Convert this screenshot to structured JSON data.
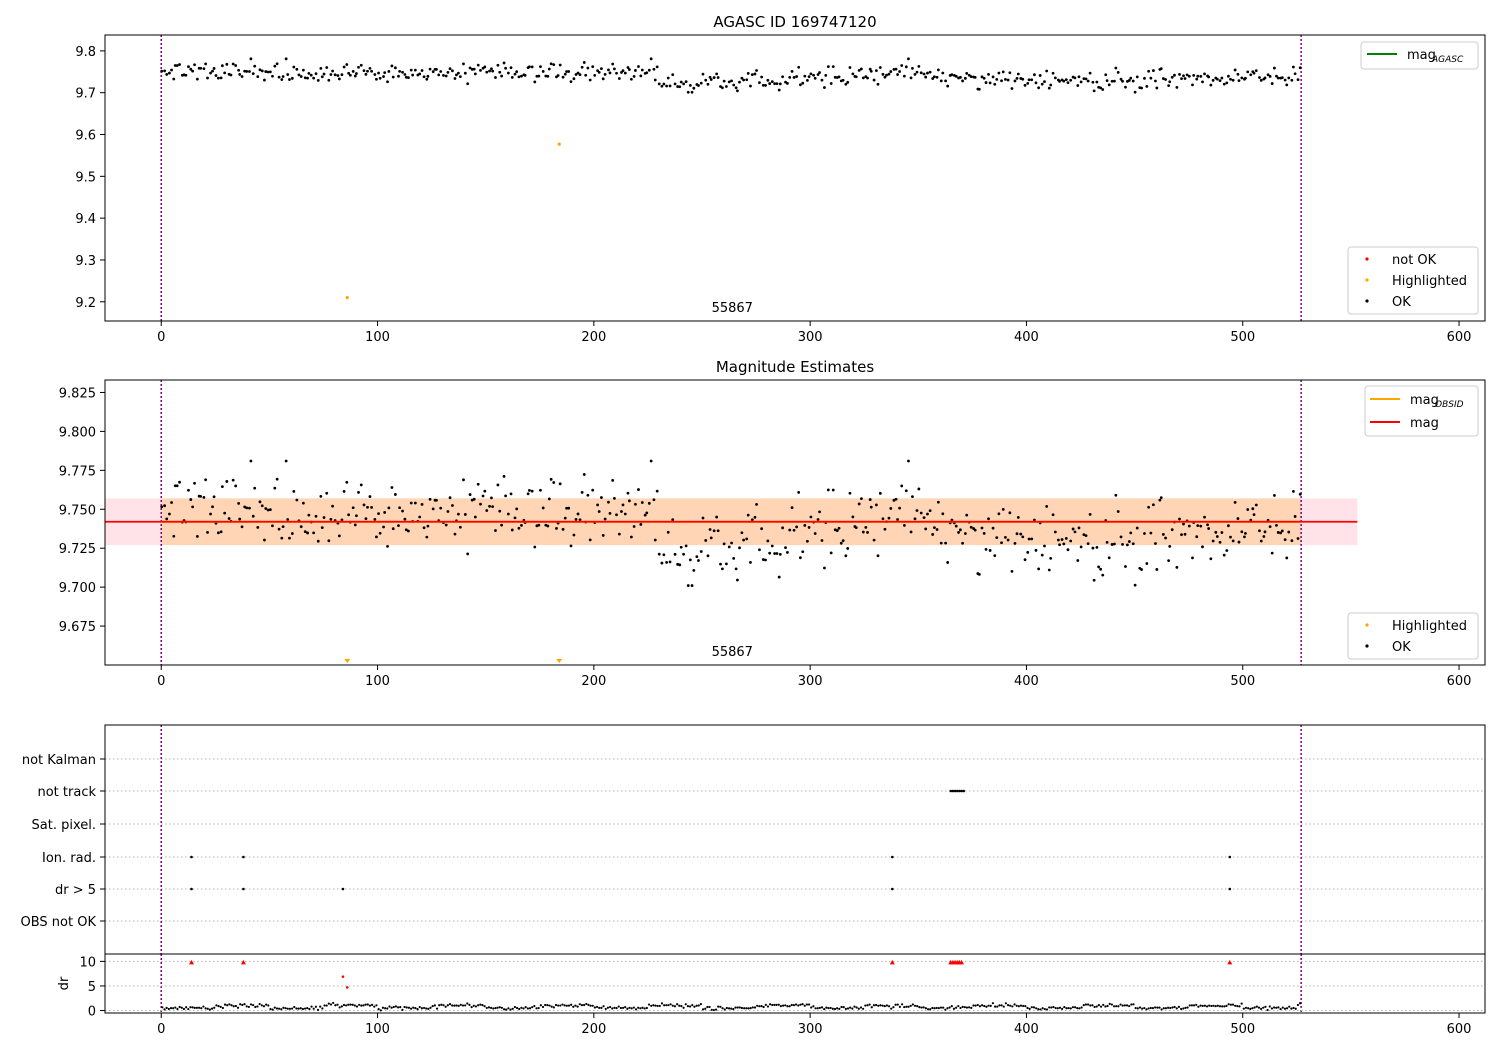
{
  "chart_data": [
    {
      "type": "scatter",
      "title": "AGASC ID 169747120",
      "xlabel": "",
      "ylabel": "",
      "xlim": [
        -26,
        612
      ],
      "ylim": [
        9.154,
        9.838
      ],
      "xticks": [
        0,
        100,
        200,
        300,
        400,
        500,
        600
      ],
      "yticks": [
        9.2,
        9.3,
        9.4,
        9.5,
        9.6,
        9.7,
        9.8
      ],
      "ytick_labels": [
        "9.2",
        "9.3",
        "9.4",
        "9.5",
        "9.6",
        "9.7",
        "9.8"
      ],
      "annotation": "55867",
      "obs_boundaries": [
        0,
        527
      ],
      "legend_lines": [
        {
          "name": "mag_AGASC",
          "main": "mag",
          "sub": "AGASC",
          "color": "#008000"
        }
      ],
      "legend_points": [
        {
          "name": "not OK",
          "color": "#ff0000"
        },
        {
          "name": "Highlighted",
          "color": "#ffa500"
        },
        {
          "name": "OK",
          "color": "#000000"
        }
      ],
      "series": [
        {
          "name": "OK",
          "color": "#000000",
          "n": 527,
          "x_start": 0,
          "x_end": 527,
          "base": 9.742,
          "envelope": "trend"
        },
        {
          "name": "Highlighted",
          "color": "#ffa500",
          "points": [
            {
              "x": 86,
              "y": 9.21
            },
            {
              "x": 184,
              "y": 9.577
            }
          ]
        }
      ]
    },
    {
      "type": "scatter",
      "title": "Magnitude Estimates",
      "xlabel": "",
      "ylabel": "",
      "xlim": [
        -26,
        612
      ],
      "ylim": [
        9.65,
        9.833
      ],
      "xticks": [
        0,
        100,
        200,
        300,
        400,
        500,
        600
      ],
      "yticks": [
        9.675,
        9.7,
        9.725,
        9.75,
        9.775,
        9.8,
        9.825
      ],
      "ytick_labels": [
        "9.675",
        "9.700",
        "9.725",
        "9.750",
        "9.775",
        "9.800",
        "9.825"
      ],
      "annotation": "55867",
      "obs_boundaries": [
        0,
        527
      ],
      "mag_line": {
        "y": 9.742,
        "color": "#ff0000"
      },
      "band_full": {
        "y_min": 9.727,
        "y_max": 9.757,
        "x_min": -26,
        "x_max": 553,
        "color": "#ffc0cb"
      },
      "band_obs": {
        "y_min": 9.727,
        "y_max": 9.757,
        "x_min": 0,
        "x_max": 527,
        "color": "#ffa500"
      },
      "legend_lines": [
        {
          "name": "mag_OBSID",
          "main": "mag",
          "sub": "OBSID",
          "color": "#ffa500"
        },
        {
          "name": "mag",
          "main": "mag",
          "sub": "",
          "color": "#ff0000"
        }
      ],
      "legend_points": [
        {
          "name": "Highlighted",
          "color": "#ffa500"
        },
        {
          "name": "OK",
          "color": "#000000"
        }
      ],
      "series": [
        {
          "name": "OK",
          "color": "#000000",
          "n": 527,
          "x_start": 0,
          "x_end": 527,
          "base": 9.742,
          "envelope": "trend"
        },
        {
          "name": "Highlighted",
          "color": "#ffa500",
          "marker": "triangle-down",
          "points": [
            {
              "x": 86,
              "y": 9.652
            },
            {
              "x": 184,
              "y": 9.652
            }
          ]
        }
      ]
    },
    {
      "type": "scatter",
      "title": "",
      "xlabel": "",
      "ylabel": "",
      "xlim": [
        -26,
        612
      ],
      "categories": [
        "not Kalman",
        "not track",
        "Sat. pixel.",
        "Ion. rad.",
        "dr > 5",
        "OBS not OK"
      ],
      "obs_boundaries": [
        0,
        527
      ],
      "flags": [
        {
          "category": "not track",
          "x": [
            365,
            366,
            367,
            368,
            369,
            370,
            371
          ]
        },
        {
          "category": "Ion. rad.",
          "x": [
            14,
            38,
            338,
            494
          ]
        },
        {
          "category": "dr > 5",
          "x": [
            14,
            38,
            84,
            338,
            494
          ]
        }
      ]
    },
    {
      "type": "scatter",
      "title": "",
      "xlabel": "",
      "ylabel": "dr",
      "xlim": [
        -26,
        612
      ],
      "ylim": [
        -0.5,
        11.5
      ],
      "yticks": [
        0,
        5,
        10
      ],
      "ytick_labels": [
        "0",
        "5",
        "10"
      ],
      "xticks": [
        0,
        100,
        200,
        300,
        400,
        500,
        600
      ],
      "obs_boundaries": [
        0,
        527
      ],
      "series": [
        {
          "name": "OK",
          "color": "#000000",
          "n": 527,
          "x_start": 0,
          "x_end": 527
        },
        {
          "name": "not OK",
          "color": "#ff0000",
          "marker": "triangle-up",
          "points": [
            {
              "x": 14,
              "y": 9.8
            },
            {
              "x": 38,
              "y": 9.8
            },
            {
              "x": 338,
              "y": 9.8
            },
            {
              "x": 365,
              "y": 9.8
            },
            {
              "x": 366,
              "y": 9.8
            },
            {
              "x": 367,
              "y": 9.8
            },
            {
              "x": 368,
              "y": 9.8
            },
            {
              "x": 369,
              "y": 9.8
            },
            {
              "x": 370,
              "y": 9.8
            },
            {
              "x": 494,
              "y": 9.8
            }
          ]
        },
        {
          "name": "not OK dots",
          "color": "#ff0000",
          "points": [
            {
              "x": 84,
              "y": 6.9
            },
            {
              "x": 86,
              "y": 4.7
            }
          ]
        }
      ]
    }
  ]
}
